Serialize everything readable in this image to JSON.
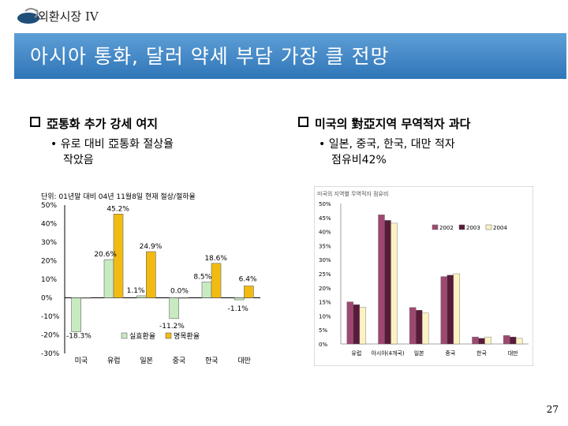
{
  "header": {
    "tag": "외환시장 IV"
  },
  "title": "아시아 통화, 달러 약세 부담 가장 클 전망",
  "left_bullet": {
    "heading": "亞통화 추가 강세 여지",
    "sub_line1": "• 유로 대비  亞통화 절상율",
    "sub_line2": "작았음"
  },
  "right_bullet": {
    "heading": "미국의 對亞지역 무역적자 과다",
    "sub_line1": "• 일본, 중국, 한국, 대만 적자",
    "sub_line2": "점유비42%"
  },
  "page_number": "27",
  "chart_data": [
    {
      "type": "bar",
      "title": "단위: 01년말 대비 04년 11월8일 현재 절상/절하율",
      "categories": [
        "미국",
        "유럽",
        "일본",
        "중국",
        "한국",
        "대만"
      ],
      "series": [
        {
          "name": "실효환율",
          "color": "#c8eac0",
          "values": [
            -18.3,
            20.6,
            1.1,
            -11.2,
            8.5,
            -1.1
          ]
        },
        {
          "name": "명목환율",
          "color": "#f2bb12",
          "values": [
            0,
            45.2,
            24.9,
            0.0,
            18.6,
            6.4
          ]
        }
      ],
      "data_labels": [
        "-18.3%",
        "20.6%",
        "1.1%",
        "-11.2%",
        "8.5%",
        "-1.1%",
        "45.2%",
        "24.9%",
        "0.0%",
        "18.6%",
        "6.4%"
      ],
      "yticks": [
        "50%",
        "40%",
        "30%",
        "20%",
        "10%",
        "0%",
        "-10%",
        "-20%",
        "-30%"
      ],
      "ylim": [
        -30,
        50
      ]
    },
    {
      "type": "bar",
      "title": "미국의 지역별 무역적자 점유비",
      "categories": [
        "유럽",
        "아시아(4개국)",
        "일본",
        "중국",
        "한국",
        "대만"
      ],
      "series": [
        {
          "name": "2002",
          "color": "#9e4870",
          "values": [
            15,
            46,
            13,
            24,
            2.5,
            3
          ]
        },
        {
          "name": "2003",
          "color": "#5a1a3a",
          "values": [
            14,
            44,
            12,
            24.5,
            2,
            2.5
          ]
        },
        {
          "name": "2004",
          "color": "#fcf2c2",
          "values": [
            13,
            43,
            11,
            25,
            2.5,
            2
          ]
        }
      ],
      "yticks": [
        "50%",
        "45%",
        "40%",
        "35%",
        "30%",
        "25%",
        "20%",
        "15%",
        "10%",
        "5%",
        "0%"
      ],
      "ylim": [
        0,
        50
      ]
    }
  ]
}
